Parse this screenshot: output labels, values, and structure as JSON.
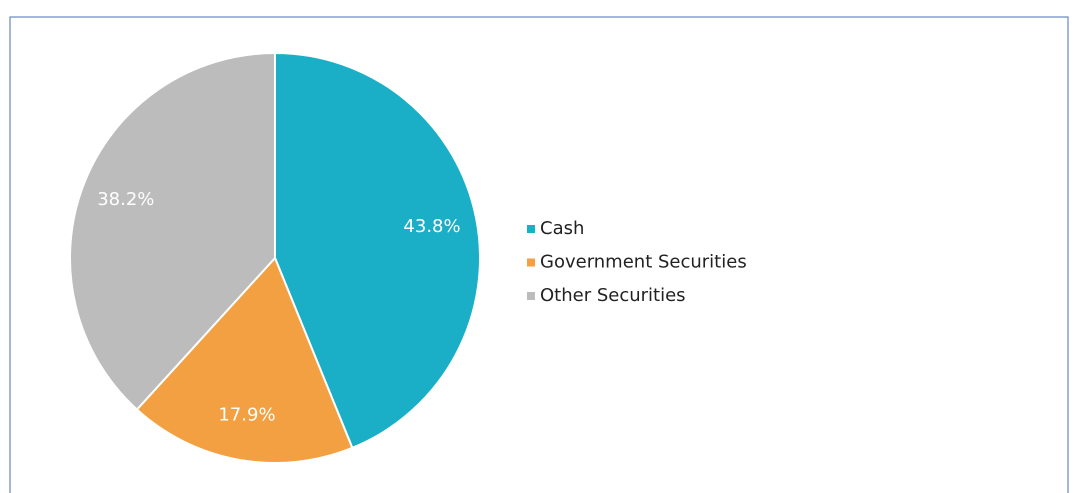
{
  "chart_data": {
    "type": "pie",
    "categories": [
      "Cash",
      "Government Securities",
      "Other Securities"
    ],
    "values": [
      43.8,
      17.9,
      38.2
    ],
    "value_labels": [
      "43.8%",
      "17.9%",
      "38.2%"
    ],
    "colors": [
      "#1aafc6",
      "#f2a041",
      "#bcbcbc"
    ],
    "legend": "right"
  }
}
